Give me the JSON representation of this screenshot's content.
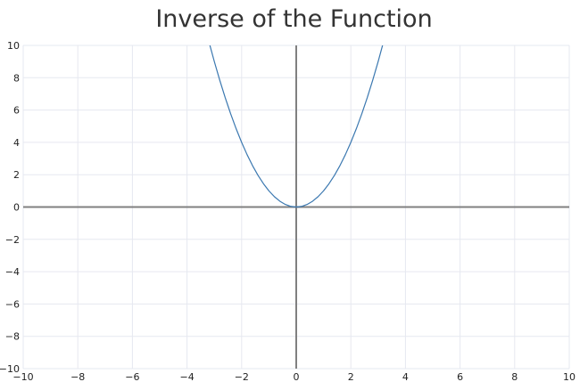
{
  "chart_data": {
    "type": "line",
    "title": "Inverse of the Function",
    "xlabel": "",
    "ylabel": "",
    "xlim": [
      -10,
      10
    ],
    "ylim": [
      -10,
      10
    ],
    "grid": true,
    "x_ticks": [
      -10,
      -8,
      -6,
      -4,
      -2,
      0,
      2,
      4,
      6,
      8,
      10
    ],
    "y_ticks": [
      -10,
      -8,
      -6,
      -4,
      -2,
      0,
      2,
      4,
      6,
      8,
      10
    ],
    "x_tick_labels": [
      "−10",
      "−8",
      "−6",
      "−4",
      "−2",
      "0",
      "2",
      "4",
      "6",
      "8",
      "10"
    ],
    "y_tick_labels": [
      "−10",
      "−8",
      "−6",
      "−4",
      "−2",
      "0",
      "2",
      "4",
      "6",
      "8",
      "10"
    ],
    "series": [
      {
        "color": "#3b78b0",
        "x": [
          -3.2,
          -3.0,
          -2.8,
          -2.6,
          -2.4,
          -2.2,
          -2.0,
          -1.8,
          -1.6,
          -1.4,
          -1.2,
          -1.0,
          -0.8,
          -0.6,
          -0.4,
          -0.2,
          0.0,
          0.2,
          0.4,
          0.6,
          0.8,
          1.0,
          1.2,
          1.4,
          1.6,
          1.8,
          2.0,
          2.2,
          2.4,
          2.6,
          2.8,
          3.0,
          3.2
        ],
        "y": [
          10.24,
          9.0,
          7.84,
          6.76,
          5.76,
          4.84,
          4.0,
          3.24,
          2.56,
          1.96,
          1.44,
          1.0,
          0.64,
          0.36,
          0.16,
          0.04,
          0.0,
          0.04,
          0.16,
          0.36,
          0.64,
          1.0,
          1.44,
          1.96,
          2.56,
          3.24,
          4.0,
          4.84,
          5.76,
          6.76,
          7.84,
          9.0,
          10.24
        ]
      }
    ],
    "colors": {
      "axis": "#808080",
      "grid": "#e6e8f0",
      "line": "#3b78b0"
    }
  }
}
